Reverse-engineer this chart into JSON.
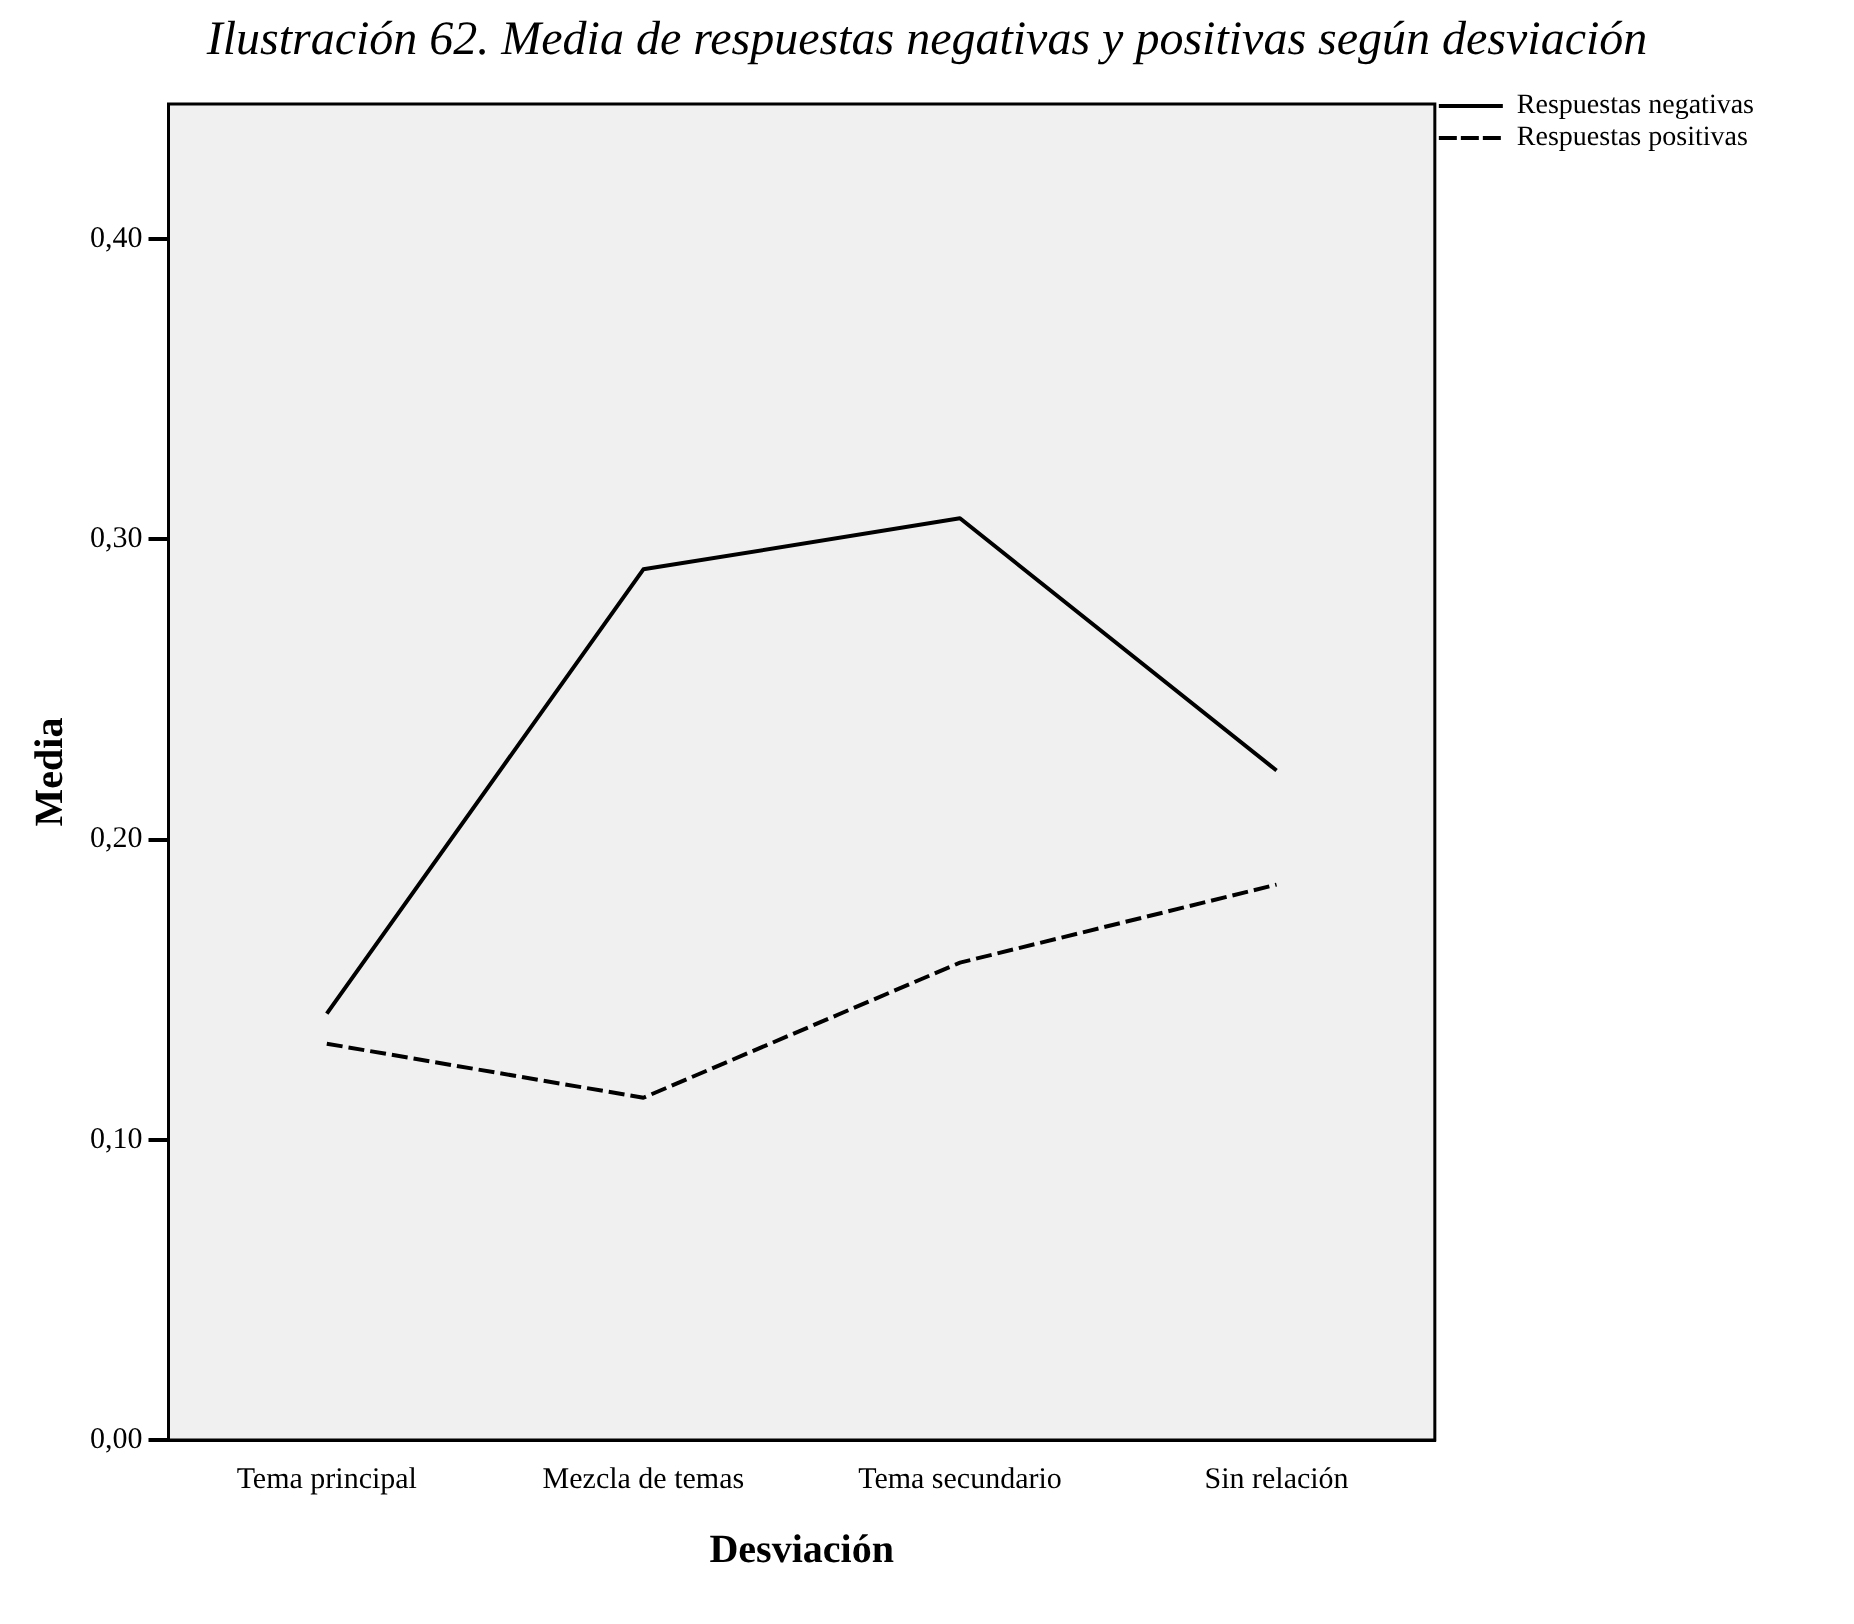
{
  "chart_data": {
    "type": "line",
    "title": "Ilustración 62. Media de respuestas negativas y positivas según desviación",
    "xlabel": "Desviación",
    "ylabel": "Media",
    "categories": [
      "Tema principal",
      "Mezcla de temas",
      "Tema secundario",
      "Sin relación"
    ],
    "series": [
      {
        "name": "Respuestas negativas",
        "color": "#000000",
        "line_style": "solid",
        "values": [
          0.142,
          0.29,
          0.307,
          0.223
        ]
      },
      {
        "name": "Respuestas positivas",
        "color": "#000000",
        "line_style": "dashed",
        "values": [
          0.132,
          0.114,
          0.159,
          0.185
        ]
      }
    ],
    "ylim": [
      0,
      0.445
    ],
    "yticks": [
      {
        "value": 0,
        "label": "0,00"
      },
      {
        "value": 0.1,
        "label": "0,10"
      },
      {
        "value": 0.2,
        "label": "0,20"
      },
      {
        "value": 0.3,
        "label": "0,30"
      },
      {
        "value": 0.4,
        "label": "0,40"
      }
    ],
    "grid": false,
    "legend": "top right",
    "marker": "none"
  }
}
